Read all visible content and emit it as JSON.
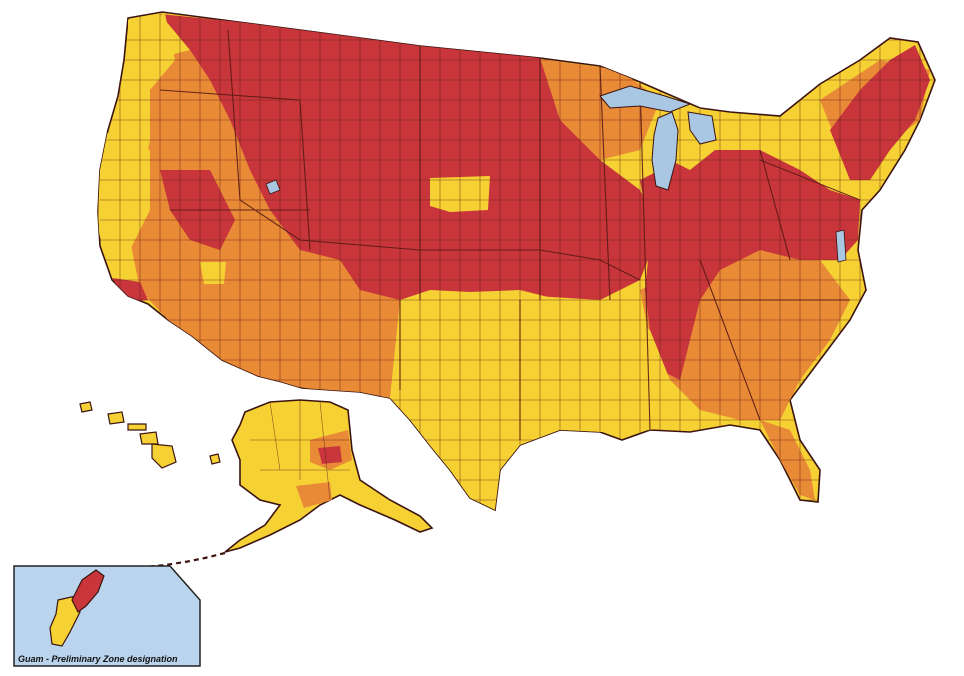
{
  "colors": {
    "zone_high": "#c8363b",
    "zone_mid": "#e98a36",
    "zone_low": "#f6d134",
    "water": "#a9c6e2",
    "border": "#3b1410",
    "inset_background": "#b9d4ec"
  },
  "inset": {
    "caption": "Guam - Preliminary Zone designation"
  }
}
